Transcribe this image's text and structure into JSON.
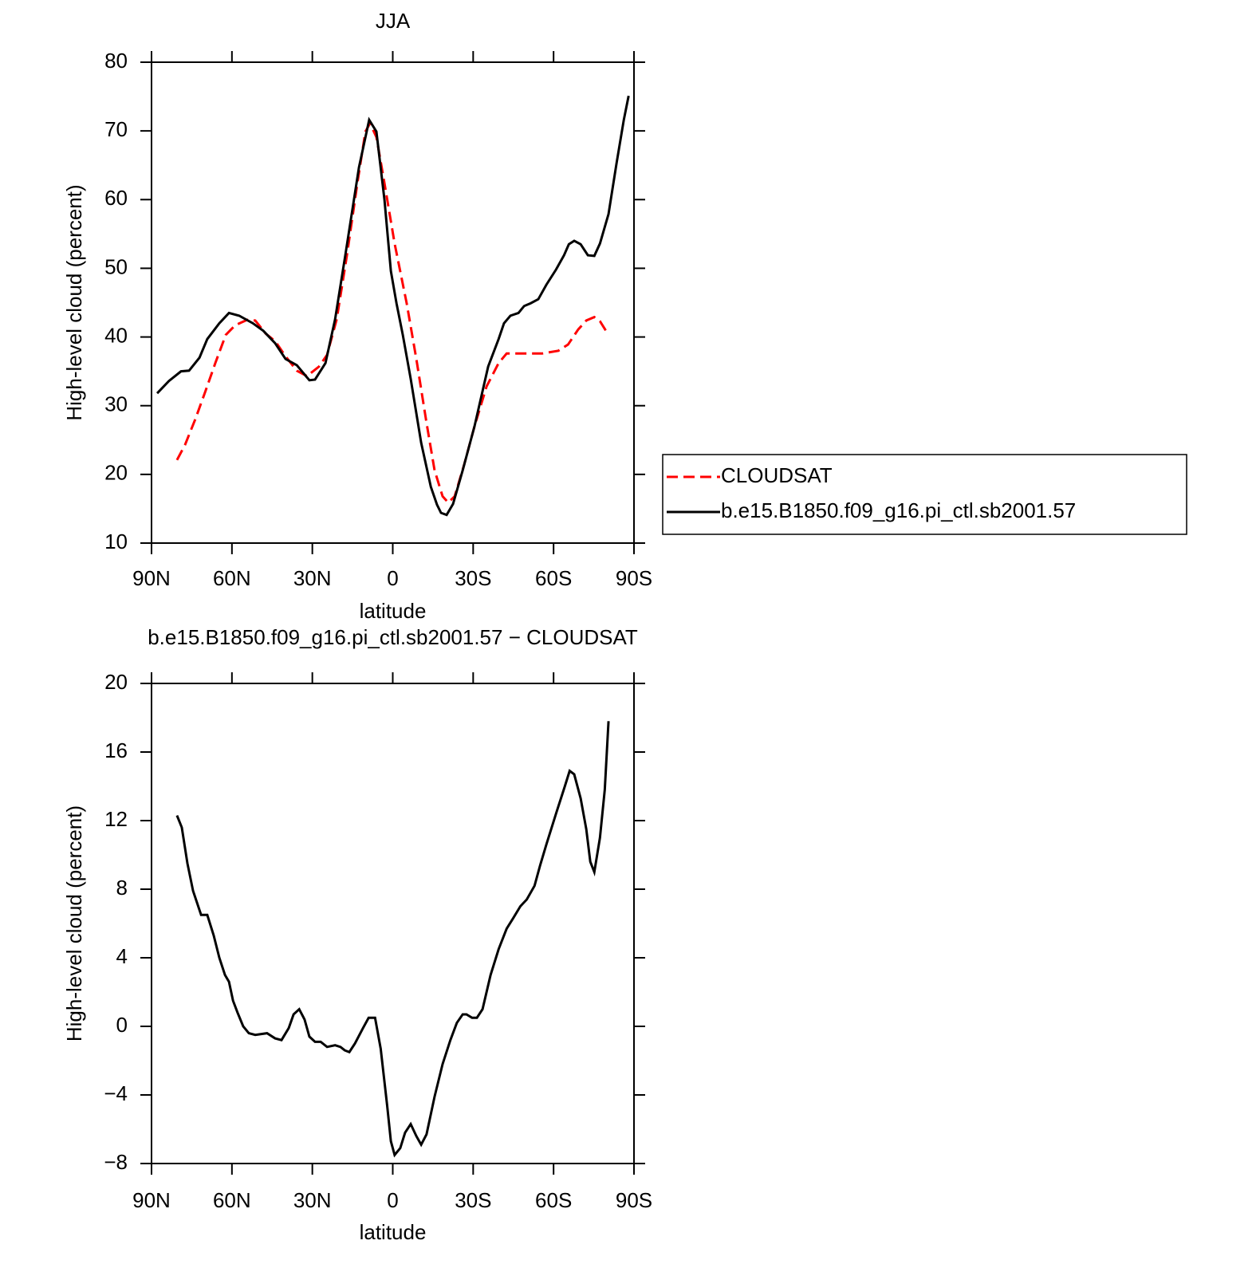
{
  "chart_data": [
    {
      "type": "line",
      "title": "JJA",
      "x_label": "latitude",
      "y_label": "High-level cloud (percent)",
      "xlim": [
        90,
        -90
      ],
      "ylim": [
        10,
        80
      ],
      "xticks": [
        {
          "value": 90,
          "label": "90N"
        },
        {
          "value": 60,
          "label": "60N"
        },
        {
          "value": 30,
          "label": "30N"
        },
        0,
        {
          "value": -30,
          "label": "30S"
        },
        {
          "value": -60,
          "label": "60S"
        },
        {
          "value": -90,
          "label": "90S"
        }
      ],
      "yticks": [
        10,
        20,
        30,
        40,
        50,
        60,
        70,
        80
      ],
      "legend": "right",
      "series": [
        {
          "name": "CLOUDSAT",
          "color": "#ff0000",
          "line_style": "dashed",
          "x": [
            80.5,
            77.5,
            73.6,
            69.8,
            66.2,
            62.3,
            58.8,
            54.3,
            51.3,
            47.4,
            43.9,
            40.0,
            35.8,
            32.0,
            27.5,
            24.5,
            20.9,
            17.1,
            13.2,
            10.2,
            8.5,
            6.1,
            3.1,
            -0.7,
            -5.2,
            -8.8,
            -12.6,
            -15.6,
            -18.6,
            -20.7,
            -23.1,
            -26.7,
            -30.5,
            -35.0,
            -39.5,
            -42.5,
            -46.9,
            -55.8,
            -61.8,
            -65.4,
            -69.2,
            -72.2,
            -75.2,
            -77.3,
            -80.5
          ],
          "values": [
            22.1,
            24.3,
            28.1,
            32.2,
            36.2,
            40.3,
            41.7,
            42.5,
            42.4,
            40.5,
            39.4,
            37.2,
            35.1,
            34.3,
            35.7,
            37.4,
            42.6,
            51.9,
            62.4,
            69.9,
            71.1,
            69.1,
            62.4,
            53.6,
            44.9,
            36.8,
            27.5,
            20.6,
            16.8,
            15.9,
            16.8,
            21.5,
            27.0,
            32.8,
            36.2,
            37.6,
            37.6,
            37.6,
            38.0,
            38.9,
            41.1,
            42.4,
            42.9,
            42.3,
            40.3
          ]
        },
        {
          "name": "b.e15.B1850.f09_g16.pi_ctl.sb2001.57",
          "color": "#000000",
          "line_style": "solid",
          "x": [
            87.9,
            83.5,
            79.0,
            76.0,
            72.1,
            69.2,
            64.7,
            61.1,
            57.3,
            52.2,
            48.3,
            43.9,
            40.0,
            35.8,
            31.1,
            29.0,
            25.1,
            21.5,
            17.7,
            12.6,
            8.8,
            6.1,
            3.1,
            0.7,
            -1.4,
            -3.75,
            -6.7,
            -10.6,
            -14.2,
            -16.5,
            -18.0,
            -20.1,
            -22.5,
            -26.1,
            -30.5,
            -35.6,
            -39.5,
            -41.5,
            -43.9,
            -46.9,
            -49.0,
            -51.4,
            -54.3,
            -57.3,
            -60.9,
            -63.9,
            -65.7,
            -67.7,
            -70.1,
            -72.8,
            -75.2,
            -77.3,
            -80.5,
            -83.5,
            -86.2,
            -88.0
          ],
          "values": [
            31.8,
            33.6,
            35.0,
            35.1,
            37.0,
            39.7,
            42.0,
            43.5,
            43.1,
            42.0,
            40.9,
            39.1,
            36.8,
            35.9,
            33.7,
            33.8,
            36.2,
            42.6,
            51.9,
            64.7,
            71.6,
            69.9,
            60.0,
            49.6,
            44.9,
            40.3,
            33.9,
            24.6,
            18.2,
            15.6,
            14.4,
            14.1,
            15.7,
            20.6,
            27.0,
            35.7,
            39.7,
            42.0,
            43.1,
            43.5,
            44.5,
            44.9,
            45.5,
            47.6,
            49.8,
            51.9,
            53.5,
            54.0,
            53.5,
            51.9,
            51.8,
            53.6,
            57.9,
            65.3,
            71.6,
            75.1
          ]
        }
      ]
    },
    {
      "type": "line",
      "title": "b.e15.B1850.f09_g16.pi_ctl.sb2001.57 − CLOUDSAT",
      "x_label": "latitude",
      "y_label": "High-level cloud (percent)",
      "xlim": [
        90,
        -90
      ],
      "ylim": [
        -8,
        20
      ],
      "xticks": [
        {
          "value": 90,
          "label": "90N"
        },
        {
          "value": 60,
          "label": "60N"
        },
        {
          "value": 30,
          "label": "30N"
        },
        0,
        {
          "value": -30,
          "label": "30S"
        },
        {
          "value": -60,
          "label": "60S"
        },
        {
          "value": -90,
          "label": "90S"
        }
      ],
      "yticks": [
        {
          "value": -8,
          "label": "−8"
        },
        {
          "value": -4,
          "label": "−4"
        },
        0,
        4,
        8,
        12,
        16,
        20
      ],
      "series": [
        {
          "color": "#000000",
          "line_style": "solid",
          "x": [
            80.5,
            78.7,
            76.6,
            74.5,
            71.5,
            69.2,
            66.8,
            64.7,
            62.6,
            61.1,
            59.6,
            57.9,
            55.8,
            53.7,
            51.3,
            46.9,
            43.9,
            41.5,
            38.8,
            37.0,
            34.9,
            32.9,
            31.1,
            29.0,
            26.9,
            24.5,
            21.5,
            19.5,
            17.9,
            16.2,
            14.1,
            11.1,
            9.0,
            6.6,
            4.5,
            2.1,
            0.7,
            -0.7,
            -2.8,
            -4.6,
            -6.7,
            -8.8,
            -10.6,
            -12.6,
            -15.6,
            -18.6,
            -21.5,
            -23.9,
            -26.1,
            -27.5,
            -29.6,
            -31.4,
            -33.5,
            -36.5,
            -39.5,
            -42.5,
            -44.9,
            -47.6,
            -50.0,
            -52.9,
            -55.0,
            -57.3,
            -60.9,
            -64.2,
            -66.0,
            -67.7,
            -70.1,
            -72.2,
            -73.7,
            -75.2,
            -77.3,
            -79.1,
            -80.5
          ],
          "values": [
            12.3,
            11.6,
            9.5,
            7.9,
            6.5,
            6.5,
            5.3,
            4.0,
            3.0,
            2.6,
            1.5,
            0.8,
            0.0,
            -0.4,
            -0.5,
            -0.4,
            -0.7,
            -0.8,
            -0.1,
            0.7,
            1.0,
            0.4,
            -0.6,
            -0.9,
            -0.9,
            -1.2,
            -1.1,
            -1.2,
            -1.4,
            -1.5,
            -1.0,
            -0.1,
            0.5,
            0.5,
            -1.3,
            -4.6,
            -6.7,
            -7.5,
            -7.1,
            -6.2,
            -5.7,
            -6.4,
            -6.9,
            -6.3,
            -4.1,
            -2.2,
            -0.8,
            0.2,
            0.7,
            0.7,
            0.5,
            0.5,
            1.0,
            3.0,
            4.5,
            5.7,
            6.3,
            7.0,
            7.4,
            8.2,
            9.4,
            10.6,
            12.4,
            14.0,
            14.9,
            14.7,
            13.3,
            11.5,
            9.6,
            9.0,
            11.0,
            13.8,
            17.8
          ]
        }
      ]
    }
  ]
}
